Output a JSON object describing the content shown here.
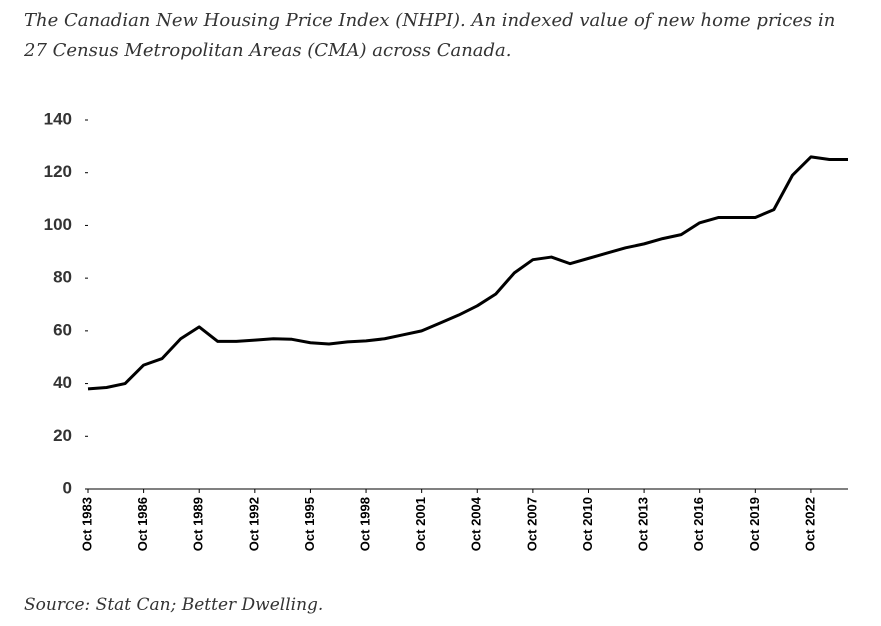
{
  "chart_data": {
    "type": "line",
    "title": "The Canadian New Housing Price Index (NHPI). An indexed value of new home prices in 27 Census Metropolitan Areas (CMA) across Canada.",
    "source": "Source: Stat Can; Better Dwelling.",
    "categories": [
      "Oct 1983",
      null,
      null,
      "Oct 1986",
      null,
      null,
      "Oct 1989",
      null,
      null,
      "Oct 1992",
      null,
      null,
      "Oct 1995",
      null,
      null,
      "Oct 1998",
      null,
      null,
      "Oct 2001",
      null,
      null,
      "Oct 2004",
      null,
      null,
      "Oct 2007",
      null,
      null,
      "Oct 2010",
      null,
      null,
      "Oct 2013",
      null,
      null,
      "Oct 2016",
      null,
      null,
      "Oct 2019",
      null,
      null,
      "Oct 2022",
      null,
      null
    ],
    "values": [
      38,
      38.5,
      40,
      47,
      49.5,
      57,
      61.5,
      56,
      56,
      56.5,
      57,
      56.8,
      55.5,
      55,
      55.8,
      56.2,
      57,
      58.5,
      60,
      63,
      66,
      69.5,
      74,
      82,
      87,
      88,
      85.5,
      87.5,
      89.5,
      91.5,
      93,
      95,
      96.5,
      101,
      103,
      103,
      103,
      106,
      119,
      126,
      125,
      125
    ],
    "color": "#000000",
    "ylim": [
      0,
      140
    ],
    "yticks": [
      0,
      20,
      40,
      60,
      80,
      100,
      120,
      140
    ]
  }
}
